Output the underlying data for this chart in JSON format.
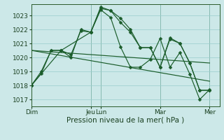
{
  "bg_color": "#cce8e8",
  "grid_color": "#99cccc",
  "line_color": "#1a5c2a",
  "xlabel": "Pression niveau de la mer( hPa )",
  "ylim": [
    1016.5,
    1023.8
  ],
  "yticks": [
    1017,
    1018,
    1019,
    1020,
    1021,
    1022,
    1023
  ],
  "xlim": [
    0,
    228
  ],
  "series": [
    {
      "x": [
        0,
        12,
        24,
        36,
        48,
        60,
        72,
        84,
        96,
        108,
        120,
        132,
        144,
        156,
        168,
        180,
        192,
        204,
        216
      ],
      "y": [
        1018.0,
        1018.85,
        1020.5,
        1020.5,
        1020.0,
        1022.0,
        1021.8,
        1023.5,
        1023.35,
        1022.8,
        1022.0,
        1020.7,
        1020.7,
        1019.3,
        1021.3,
        1021.0,
        1019.6,
        1017.65,
        1017.65
      ],
      "markers": true
    },
    {
      "x": [
        0,
        12,
        24,
        36,
        48,
        60,
        72,
        84,
        96,
        108,
        120,
        132,
        144,
        156,
        168,
        180,
        192,
        204,
        216
      ],
      "y": [
        1018.0,
        1019.0,
        1020.5,
        1020.5,
        1020.2,
        1021.9,
        1021.8,
        1023.6,
        1023.35,
        1022.5,
        1021.8,
        1020.7,
        1020.7,
        1019.3,
        1021.4,
        1021.0,
        1019.6,
        1017.65,
        1017.65
      ],
      "markers": true
    },
    {
      "x": [
        0,
        36,
        72,
        84,
        96,
        108,
        120,
        132,
        144,
        156,
        168,
        180,
        192,
        204,
        216
      ],
      "y": [
        1018.0,
        1020.5,
        1021.8,
        1023.4,
        1022.85,
        1020.75,
        1019.3,
        1019.3,
        1019.85,
        1021.35,
        1019.3,
        1020.35,
        1018.8,
        1017.0,
        1017.7
      ],
      "markers": true
    },
    {
      "x": [
        0,
        216
      ],
      "y": [
        1020.5,
        1019.6
      ],
      "markers": false
    },
    {
      "x": [
        0,
        216
      ],
      "y": [
        1020.5,
        1018.3
      ],
      "markers": false
    }
  ],
  "vlines": [
    72,
    84,
    156,
    216
  ],
  "xtick_positions": [
    0,
    72,
    84,
    156,
    216
  ],
  "xtick_labels": [
    "Dim",
    "Jeu",
    "Lun",
    "Mar",
    "Mer"
  ]
}
